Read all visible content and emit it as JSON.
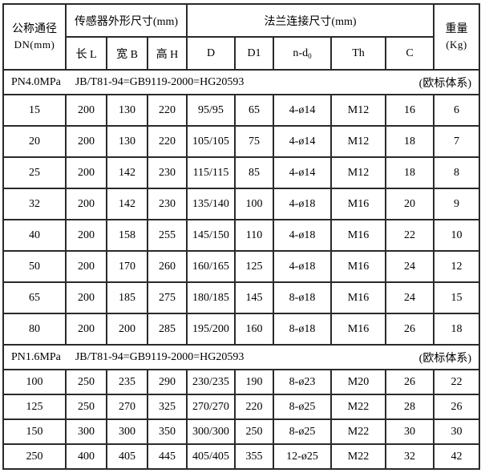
{
  "table": {
    "header": {
      "dn_line1": "公称通径",
      "dn_line2": "DN(mm)",
      "sensor_group": "传感器外形尺寸(mm)",
      "flange_group": "法兰连接尺寸(mm)",
      "weight_line1": "重量",
      "weight_line2": "(Kg)",
      "col_l": "长 L",
      "col_b": "宽 B",
      "col_h": "高 H",
      "col_d": "D",
      "col_d1": "D1",
      "col_nd_base": "n-d",
      "col_nd_sub": "0",
      "col_th": "Th",
      "col_c": "C"
    },
    "sections": [
      {
        "pressure": "PN4.0MPa",
        "standard": "JB/T81-94=GB9119-2000=HG20593",
        "note": "(欧标体系)",
        "rows": [
          [
            "15",
            "200",
            "130",
            "220",
            "95/95",
            "65",
            "4-ø14",
            "M12",
            "16",
            "6"
          ],
          [
            "20",
            "200",
            "130",
            "220",
            "105/105",
            "75",
            "4-ø14",
            "M12",
            "18",
            "7"
          ],
          [
            "25",
            "200",
            "142",
            "230",
            "115/115",
            "85",
            "4-ø14",
            "M12",
            "18",
            "8"
          ],
          [
            "32",
            "200",
            "142",
            "230",
            "135/140",
            "100",
            "4-ø18",
            "M16",
            "20",
            "9"
          ],
          [
            "40",
            "200",
            "158",
            "255",
            "145/150",
            "110",
            "4-ø18",
            "M16",
            "22",
            "10"
          ],
          [
            "50",
            "200",
            "170",
            "260",
            "160/165",
            "125",
            "4-ø18",
            "M16",
            "24",
            "12"
          ],
          [
            "65",
            "200",
            "185",
            "275",
            "180/185",
            "145",
            "8-ø18",
            "M16",
            "24",
            "15"
          ],
          [
            "80",
            "200",
            "200",
            "285",
            "195/200",
            "160",
            "8-ø18",
            "M16",
            "26",
            "18"
          ]
        ]
      },
      {
        "pressure": "PN1.6MPa",
        "standard": "JB/T81-94=GB9119-2000=HG20593",
        "note": "(欧标体系)",
        "rows": [
          [
            "100",
            "250",
            "235",
            "290",
            "230/235",
            "190",
            "8-ø23",
            "M20",
            "26",
            "22"
          ],
          [
            "125",
            "250",
            "270",
            "325",
            "270/270",
            "220",
            "8-ø25",
            "M22",
            "28",
            "26"
          ],
          [
            "150",
            "300",
            "300",
            "350",
            "300/300",
            "250",
            "8-ø25",
            "M22",
            "30",
            "30"
          ],
          [
            "250",
            "400",
            "405",
            "445",
            "405/405",
            "355",
            "12-ø25",
            "M22",
            "32",
            "42"
          ]
        ]
      }
    ]
  }
}
